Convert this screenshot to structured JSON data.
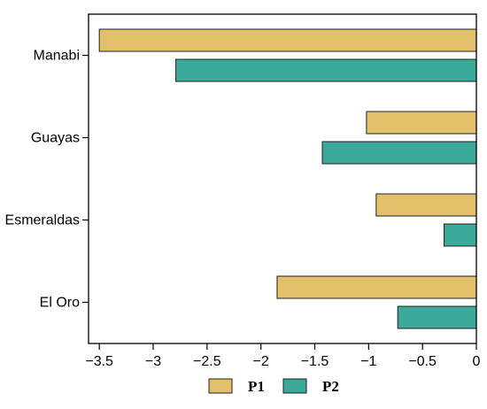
{
  "chart_data": {
    "type": "bar",
    "orientation": "horizontal",
    "categories": [
      "Manabi",
      "Guayas",
      "Esmeraldas",
      "El Oro"
    ],
    "series": [
      {
        "name": "P1",
        "values": [
          -3.5,
          -1.02,
          -0.93,
          -1.85
        ],
        "color": "#e3c06b"
      },
      {
        "name": "P2",
        "values": [
          -2.79,
          -1.43,
          -0.3,
          -0.73
        ],
        "color": "#3aa99a"
      }
    ],
    "xlim": [
      -3.6,
      0
    ],
    "xticks": [
      -3.5,
      -3,
      -2.5,
      -2,
      -1.5,
      -1,
      -0.5,
      0
    ],
    "xtick_labels": [
      "−3.5",
      "−3",
      "−2.5",
      "−2",
      "−1.5",
      "−1",
      "−0.5",
      "0"
    ],
    "title": "",
    "xlabel": "",
    "ylabel": "",
    "grid": false,
    "legend_position": "bottom"
  }
}
